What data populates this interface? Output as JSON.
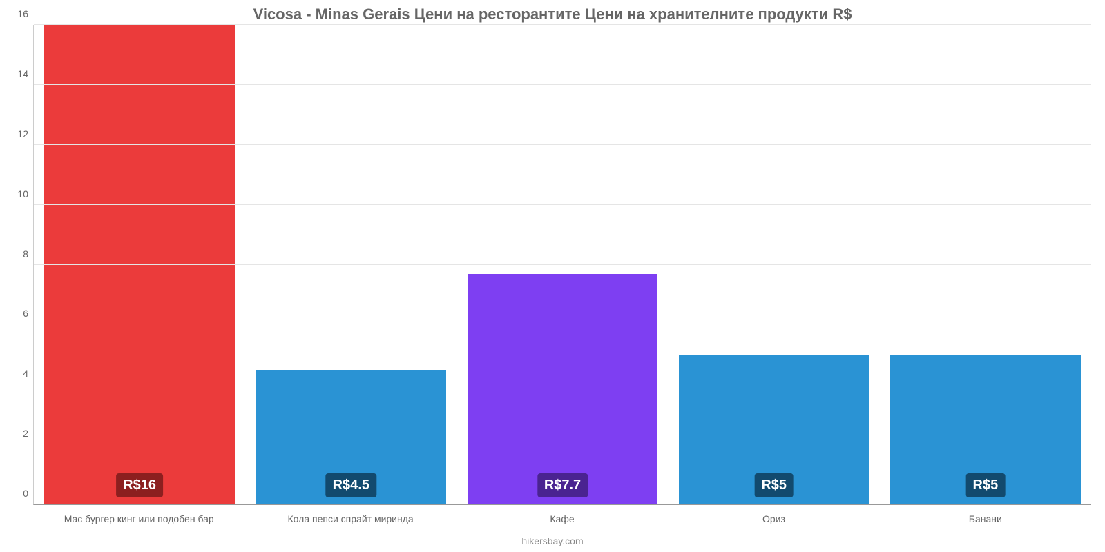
{
  "chart": {
    "type": "bar",
    "title": "Vicosa - Minas Gerais Цени на ресторантите Цени на хранителните продукти R$",
    "title_fontsize": 22,
    "title_color": "#666666",
    "credit": "hikersbay.com",
    "credit_fontsize": 14,
    "credit_color": "#888888",
    "background_color": "#ffffff",
    "grid_color": "#e5e5e5",
    "axis_color": "#999999",
    "ylim": [
      0,
      16
    ],
    "yticks": [
      0,
      2,
      4,
      6,
      8,
      10,
      12,
      14,
      16
    ],
    "ytick_fontsize": 14,
    "ytick_color": "#666666",
    "xtick_fontsize": 14,
    "xtick_color": "#666666",
    "bar_width_pct": 90,
    "value_label_fontsize": 20,
    "categories": [
      "Мас бургер кинг или подобен бар",
      "Кола пепси спрайт миринда",
      "Кафе",
      "Ориз",
      "Банани"
    ],
    "values": [
      16,
      4.5,
      7.7,
      5,
      5
    ],
    "value_labels": [
      "R$16",
      "R$4.5",
      "R$7.7",
      "R$5",
      "R$5"
    ],
    "bar_colors": [
      "#eb3b3b",
      "#2a93d4",
      "#7e3ff2",
      "#2a93d4",
      "#2a93d4"
    ],
    "badge_colors": [
      "#8c1f1f",
      "#124a6e",
      "#4a2391",
      "#124a6e",
      "#124a6e"
    ]
  }
}
